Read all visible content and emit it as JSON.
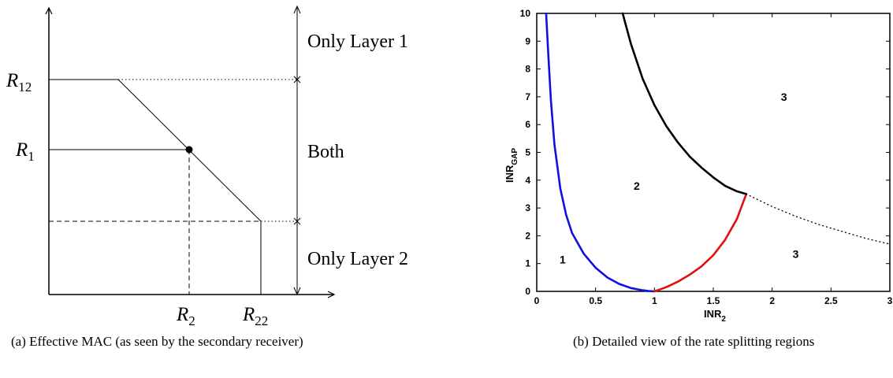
{
  "left_panel": {
    "labels": {
      "r12": "R",
      "r12_sub": "12",
      "r1": "R",
      "r1_sub": "1",
      "r2": "R",
      "r2_sub": "2",
      "r22": "R",
      "r22_sub": "22",
      "only_layer1": "Only Layer 1",
      "both": "Both",
      "only_layer2": "Only Layer 2"
    },
    "caption": "(a) Effective MAC (as seen by the secondary receiver)"
  },
  "chart_data": {
    "type": "line",
    "xlabel": "INR",
    "xlabel_sub": "2",
    "ylabel": "INR",
    "ylabel_sub": "GAP",
    "xlim": [
      0,
      3
    ],
    "ylim": [
      0,
      10
    ],
    "xticks": [
      "0",
      "0.5",
      "1",
      "1.5",
      "2",
      "2.5",
      "3"
    ],
    "yticks": [
      "0",
      "1",
      "2",
      "3",
      "4",
      "5",
      "6",
      "7",
      "8",
      "9",
      "10"
    ],
    "series": [
      {
        "color": "#1010e0",
        "style": "solid",
        "x": [
          0.08,
          0.1,
          0.12,
          0.15,
          0.2,
          0.25,
          0.3,
          0.4,
          0.5,
          0.6,
          0.7,
          0.8,
          0.9,
          0.95,
          1.0
        ],
        "y": [
          10.0,
          8.4,
          6.9,
          5.3,
          3.7,
          2.75,
          2.1,
          1.35,
          0.85,
          0.5,
          0.27,
          0.12,
          0.04,
          0.01,
          0.0
        ]
      },
      {
        "color": "#e01010",
        "style": "solid",
        "x": [
          1.0,
          1.1,
          1.2,
          1.3,
          1.4,
          1.5,
          1.6,
          1.7,
          1.78
        ],
        "y": [
          0.0,
          0.15,
          0.35,
          0.6,
          0.9,
          1.3,
          1.85,
          2.6,
          3.5
        ]
      },
      {
        "color": "#000000",
        "style": "solid",
        "x": [
          0.73,
          0.8,
          0.9,
          1.0,
          1.1,
          1.2,
          1.3,
          1.4,
          1.5,
          1.6,
          1.7,
          1.78
        ],
        "y": [
          10.0,
          8.9,
          7.65,
          6.7,
          5.95,
          5.35,
          4.85,
          4.45,
          4.1,
          3.8,
          3.6,
          3.5
        ]
      },
      {
        "color": "#000000",
        "style": "dotted",
        "x": [
          1.78,
          2.0,
          2.2,
          2.4,
          2.6,
          2.8,
          3.0
        ],
        "y": [
          3.5,
          3.05,
          2.7,
          2.4,
          2.15,
          1.9,
          1.7
        ]
      }
    ],
    "annotations": [
      {
        "text": "1",
        "x": 0.22,
        "y": 1.15
      },
      {
        "text": "2",
        "x": 0.85,
        "y": 3.8
      },
      {
        "text": "3",
        "x": 2.1,
        "y": 7.0
      },
      {
        "text": "3",
        "x": 2.2,
        "y": 1.35
      }
    ],
    "caption": "(b) Detailed view of the rate splitting regions"
  }
}
